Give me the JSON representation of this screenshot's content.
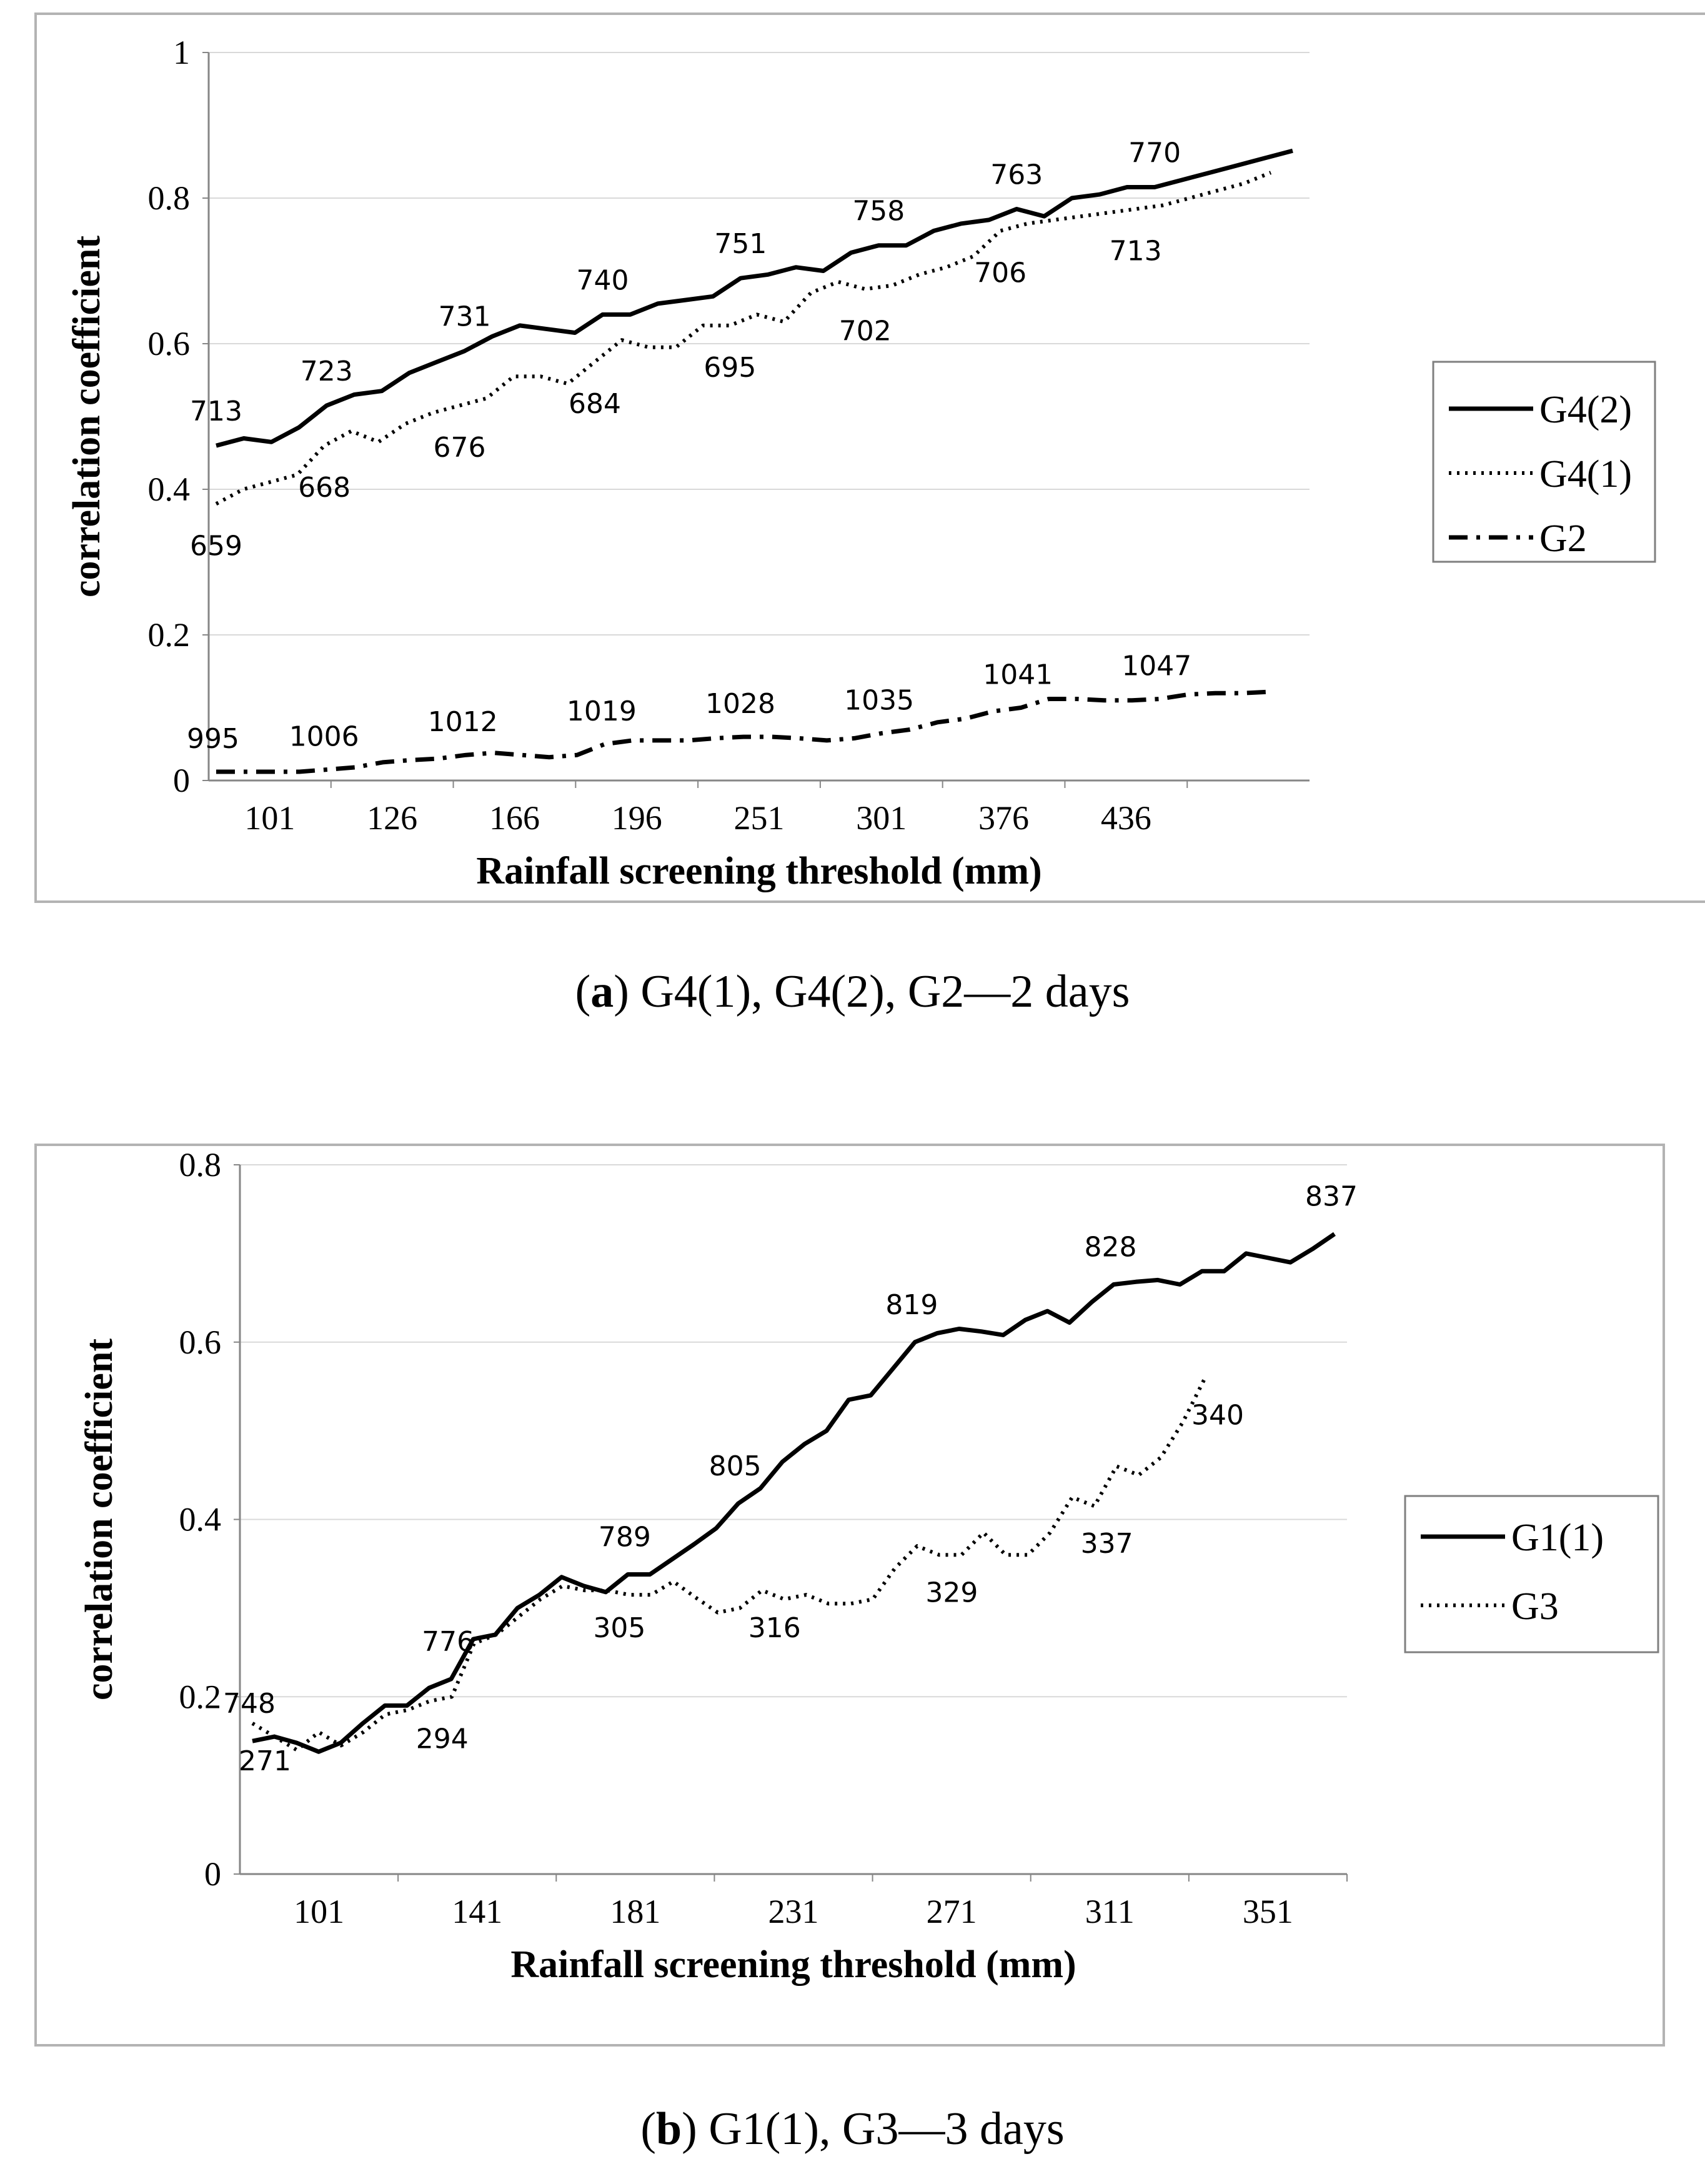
{
  "chart_data": [
    {
      "type": "line",
      "panel": "a",
      "title": "",
      "xlabel": "Rainfall screening threshold (mm)",
      "ylabel": "correlation coefficient",
      "ylim": [
        0,
        1
      ],
      "yticks": [
        "0",
        "0.2",
        "0.4",
        "0.6",
        "0.8",
        "1"
      ],
      "xticks": [
        "101",
        "126",
        "166",
        "196",
        "251",
        "301",
        "376",
        "436"
      ],
      "legend": [
        "G4(2)",
        "G4(1)",
        "G2"
      ],
      "legend_position": "right",
      "series": [
        {
          "name": "G4(2)",
          "style": "solid",
          "values": [
            0.46,
            0.47,
            0.465,
            0.485,
            0.515,
            0.53,
            0.535,
            0.56,
            0.575,
            0.59,
            0.61,
            0.625,
            0.62,
            0.615,
            0.64,
            0.64,
            0.655,
            0.66,
            0.665,
            0.69,
            0.695,
            0.705,
            0.7,
            0.725,
            0.735,
            0.735,
            0.755,
            0.765,
            0.77,
            0.785,
            0.775,
            0.8,
            0.805,
            0.815,
            0.815,
            0.825,
            0.835,
            0.845,
            0.855,
            0.865
          ]
        },
        {
          "name": "G4(1)",
          "style": "dotted",
          "values": [
            0.38,
            0.4,
            0.41,
            0.42,
            0.46,
            0.48,
            0.465,
            0.49,
            0.505,
            0.515,
            0.525,
            0.555,
            0.555,
            0.545,
            0.575,
            0.605,
            0.595,
            0.595,
            0.625,
            0.625,
            0.64,
            0.63,
            0.67,
            0.685,
            0.675,
            0.68,
            0.695,
            0.705,
            0.72,
            0.755,
            0.765,
            0.77,
            0.775,
            0.78,
            0.785,
            0.79,
            0.8,
            0.81,
            0.82,
            0.835
          ]
        },
        {
          "name": "G2",
          "style": "dash-dot",
          "values": [
            0.012,
            0.012,
            0.012,
            0.012,
            0.015,
            0.018,
            0.025,
            0.028,
            0.03,
            0.035,
            0.038,
            0.035,
            0.032,
            0.035,
            0.05,
            0.055,
            0.055,
            0.055,
            0.058,
            0.06,
            0.06,
            0.058,
            0.055,
            0.058,
            0.065,
            0.07,
            0.08,
            0.085,
            0.095,
            0.1,
            0.112,
            0.112,
            0.11,
            0.11,
            0.112,
            0.118,
            0.12,
            0.12,
            0.122
          ]
        }
      ],
      "annotations": [
        {
          "series": "G4(2)",
          "index": 0,
          "text": "713"
        },
        {
          "series": "G4(2)",
          "index": 4,
          "text": "723"
        },
        {
          "series": "G4(2)",
          "index": 9,
          "text": "731"
        },
        {
          "series": "G4(2)",
          "index": 14,
          "text": "740"
        },
        {
          "series": "G4(2)",
          "index": 19,
          "text": "751"
        },
        {
          "series": "G4(2)",
          "index": 24,
          "text": "758"
        },
        {
          "series": "G4(2)",
          "index": 29,
          "text": "763"
        },
        {
          "series": "G4(2)",
          "index": 34,
          "text": "770"
        },
        {
          "series": "G4(1)",
          "index": 0,
          "text": "659"
        },
        {
          "series": "G4(1)",
          "index": 4,
          "text": "668"
        },
        {
          "series": "G4(1)",
          "index": 9,
          "text": "676"
        },
        {
          "series": "G4(1)",
          "index": 14,
          "text": "684"
        },
        {
          "series": "G4(1)",
          "index": 19,
          "text": "695"
        },
        {
          "series": "G4(1)",
          "index": 24,
          "text": "702"
        },
        {
          "series": "G4(1)",
          "index": 29,
          "text": "706"
        },
        {
          "series": "G4(1)",
          "index": 34,
          "text": "713"
        },
        {
          "series": "G2",
          "index": 0,
          "text": "995"
        },
        {
          "series": "G2",
          "index": 4,
          "text": "1006"
        },
        {
          "series": "G2",
          "index": 9,
          "text": "1012"
        },
        {
          "series": "G2",
          "index": 14,
          "text": "1019"
        },
        {
          "series": "G2",
          "index": 19,
          "text": "1028"
        },
        {
          "series": "G2",
          "index": 24,
          "text": "1035"
        },
        {
          "series": "G2",
          "index": 29,
          "text": "1041"
        },
        {
          "series": "G2",
          "index": 34,
          "text": "1047"
        }
      ]
    },
    {
      "type": "line",
      "panel": "b",
      "title": "",
      "xlabel": "Rainfall screening threshold (mm)",
      "ylabel": "correlation coefficient",
      "ylim": [
        0,
        0.8
      ],
      "yticks": [
        "0",
        "0.2",
        "0.4",
        "0.6",
        "0.8"
      ],
      "xticks": [
        "101",
        "141",
        "181",
        "231",
        "271",
        "311",
        "351"
      ],
      "legend": [
        "G1(1)",
        "G3"
      ],
      "legend_position": "right",
      "series": [
        {
          "name": "G1(1)",
          "style": "solid",
          "values": [
            0.15,
            0.155,
            0.148,
            0.138,
            0.148,
            0.17,
            0.19,
            0.19,
            0.21,
            0.22,
            0.265,
            0.27,
            0.3,
            0.315,
            0.335,
            0.325,
            0.318,
            0.338,
            0.338,
            0.355,
            0.372,
            0.39,
            0.418,
            0.435,
            0.465,
            0.485,
            0.5,
            0.535,
            0.54,
            0.57,
            0.6,
            0.61,
            0.615,
            0.612,
            0.608,
            0.625,
            0.635,
            0.622,
            0.645,
            0.665,
            0.668,
            0.67,
            0.665,
            0.68,
            0.68,
            0.7,
            0.695,
            0.69,
            0.705,
            0.722
          ]
        },
        {
          "name": "G3",
          "style": "dotted",
          "values": [
            0.17,
            0.155,
            0.14,
            0.16,
            0.145,
            0.16,
            0.18,
            0.185,
            0.195,
            0.2,
            0.26,
            0.27,
            0.29,
            0.31,
            0.325,
            0.32,
            0.32,
            0.315,
            0.315,
            0.33,
            0.312,
            0.295,
            0.3,
            0.32,
            0.31,
            0.315,
            0.305,
            0.305,
            0.31,
            0.345,
            0.37,
            0.36,
            0.36,
            0.385,
            0.36,
            0.36,
            0.385,
            0.425,
            0.415,
            0.46,
            0.45,
            0.47,
            0.51,
            0.56
          ]
        }
      ],
      "annotations": [
        {
          "series": "G1(1)",
          "index": 0,
          "text": "748"
        },
        {
          "series": "G1(1)",
          "index": 9,
          "text": "776"
        },
        {
          "series": "G1(1)",
          "index": 17,
          "text": "789"
        },
        {
          "series": "G1(1)",
          "index": 22,
          "text": "805"
        },
        {
          "series": "G1(1)",
          "index": 30,
          "text": "819"
        },
        {
          "series": "G1(1)",
          "index": 39,
          "text": "828"
        },
        {
          "series": "G1(1)",
          "index": 49,
          "text": "837"
        },
        {
          "series": "G3",
          "index": 0,
          "text": "271"
        },
        {
          "series": "G3",
          "index": 8,
          "text": "294"
        },
        {
          "series": "G3",
          "index": 16,
          "text": "305"
        },
        {
          "series": "G3",
          "index": 23,
          "text": "316"
        },
        {
          "series": "G3",
          "index": 31,
          "text": "329"
        },
        {
          "series": "G3",
          "index": 38,
          "text": "337"
        },
        {
          "series": "G3",
          "index": 43,
          "text": "340"
        }
      ]
    }
  ],
  "captions": {
    "a": {
      "letter": "a",
      "text": " G4(1), G4(2), G2—2 days"
    },
    "b": {
      "letter": "b",
      "text": " G1(1), G3—3 days"
    }
  }
}
